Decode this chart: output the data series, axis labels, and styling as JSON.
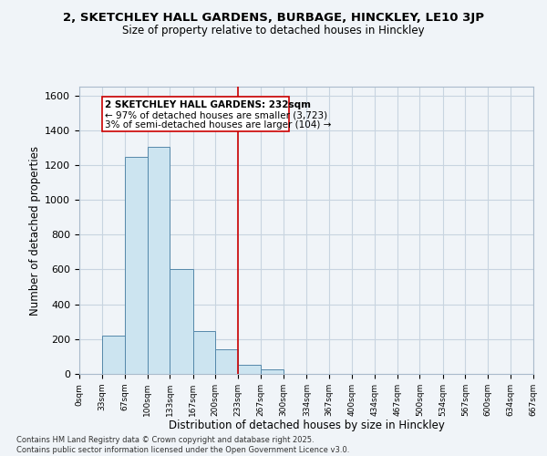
{
  "title_line1": "2, SKETCHLEY HALL GARDENS, BURBAGE, HINCKLEY, LE10 3JP",
  "title_line2": "Size of property relative to detached houses in Hinckley",
  "xlabel": "Distribution of detached houses by size in Hinckley",
  "ylabel": "Number of detached properties",
  "bin_edges": [
    0,
    33,
    67,
    100,
    133,
    167,
    200,
    233,
    267,
    300,
    334,
    367,
    400,
    434,
    467,
    500,
    534,
    567,
    600,
    634,
    667
  ],
  "bar_heights": [
    0,
    220,
    1245,
    1305,
    605,
    245,
    140,
    55,
    25,
    0,
    0,
    0,
    0,
    0,
    0,
    0,
    0,
    0,
    0,
    0
  ],
  "bar_color": "#cce4f0",
  "bar_edge_color": "#5588aa",
  "vline_x": 233,
  "vline_color": "#cc0000",
  "annotation_title": "2 SKETCHLEY HALL GARDENS: 232sqm",
  "annotation_line2": "← 97% of detached houses are smaller (3,723)",
  "annotation_line3": "3% of semi-detached houses are larger (104) →",
  "annotation_box_color": "#ffffff",
  "annotation_box_edge": "#cc0000",
  "ylim": [
    0,
    1650
  ],
  "yticks": [
    0,
    200,
    400,
    600,
    800,
    1000,
    1200,
    1400,
    1600
  ],
  "tick_labels": [
    "0sqm",
    "33sqm",
    "67sqm",
    "100sqm",
    "133sqm",
    "167sqm",
    "200sqm",
    "233sqm",
    "267sqm",
    "300sqm",
    "334sqm",
    "367sqm",
    "400sqm",
    "434sqm",
    "467sqm",
    "500sqm",
    "534sqm",
    "567sqm",
    "600sqm",
    "634sqm",
    "667sqm"
  ],
  "footer_line1": "Contains HM Land Registry data © Crown copyright and database right 2025.",
  "footer_line2": "Contains public sector information licensed under the Open Government Licence v3.0.",
  "background_color": "#f0f4f8",
  "grid_color": "#c8d4e0"
}
